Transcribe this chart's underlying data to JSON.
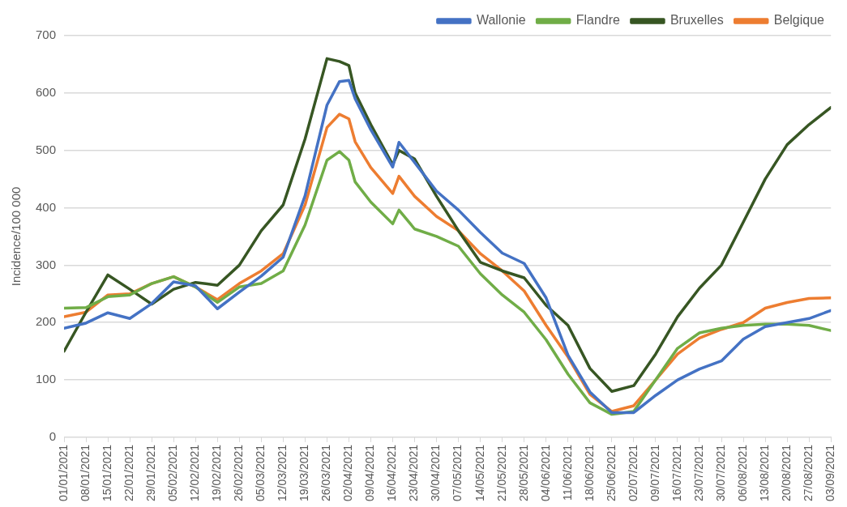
{
  "chart_data": {
    "type": "line",
    "ylabel": "Incidence/100 000",
    "legend": "top right",
    "grid": "y",
    "marker": "none",
    "line_style": "solid",
    "x": [
      "2021-01-01",
      "2021-01-08",
      "2021-01-15",
      "2021-01-22",
      "2021-01-29",
      "2021-02-05",
      "2021-02-12",
      "2021-02-19",
      "2021-02-26",
      "2021-03-05",
      "2021-03-12",
      "2021-03-19",
      "2021-03-26",
      "2021-03-30",
      "2021-04-02",
      "2021-04-04",
      "2021-04-09",
      "2021-04-16",
      "2021-04-18",
      "2021-04-23",
      "2021-04-30",
      "2021-05-07",
      "2021-05-14",
      "2021-05-21",
      "2021-05-28",
      "2021-06-04",
      "2021-06-11",
      "2021-06-18",
      "2021-06-25",
      "2021-07-02",
      "2021-07-09",
      "2021-07-16",
      "2021-07-23",
      "2021-07-30",
      "2021-08-06",
      "2021-08-13",
      "2021-08-20",
      "2021-08-27",
      "2021-09-03"
    ],
    "series": [
      {
        "name": "Wallonie",
        "color": "#4472c4",
        "values": [
          190,
          199,
          217,
          207,
          233,
          271,
          264,
          224,
          253,
          281,
          314,
          421,
          579,
          620,
          622,
          590,
          536,
          471,
          514,
          479,
          429,
          396,
          357,
          321,
          303,
          243,
          143,
          79,
          43,
          43,
          73,
          100,
          119,
          133,
          171,
          193,
          200,
          207,
          221
        ]
      },
      {
        "name": "Flandre",
        "color": "#70ad47",
        "values": [
          225,
          226,
          245,
          248,
          268,
          280,
          262,
          235,
          262,
          268,
          290,
          370,
          483,
          498,
          483,
          445,
          410,
          372,
          396,
          363,
          350,
          333,
          285,
          248,
          218,
          170,
          110,
          60,
          40,
          45,
          100,
          155,
          182,
          190,
          195,
          197,
          197,
          195,
          186
        ]
      },
      {
        "name": "Bruxelles",
        "color": "#375623",
        "values": [
          150,
          218,
          283,
          258,
          232,
          258,
          270,
          265,
          300,
          360,
          405,
          520,
          660,
          655,
          648,
          600,
          545,
          475,
          500,
          485,
          420,
          360,
          305,
          290,
          278,
          230,
          195,
          120,
          80,
          90,
          145,
          210,
          260,
          300,
          375,
          450,
          510,
          545,
          575
        ]
      },
      {
        "name": "Belgique",
        "color": "#ed7d31",
        "values": [
          210,
          218,
          248,
          250,
          268,
          280,
          262,
          240,
          268,
          290,
          320,
          405,
          540,
          563,
          555,
          515,
          470,
          425,
          455,
          420,
          385,
          360,
          320,
          290,
          255,
          195,
          140,
          75,
          45,
          55,
          100,
          145,
          173,
          188,
          200,
          225,
          235,
          242,
          243
        ]
      }
    ],
    "xlim": [
      "2021-01-01",
      "2021-09-03"
    ],
    "xticks": [
      {
        "value": "2021-01-01",
        "label": "01/01/2021"
      },
      {
        "value": "2021-01-08",
        "label": "08/01/2021"
      },
      {
        "value": "2021-01-15",
        "label": "15/01/2021"
      },
      {
        "value": "2021-01-22",
        "label": "22/01/2021"
      },
      {
        "value": "2021-01-29",
        "label": "29/01/2021"
      },
      {
        "value": "2021-02-05",
        "label": "05/02/2021"
      },
      {
        "value": "2021-02-12",
        "label": "12/02/2021"
      },
      {
        "value": "2021-02-19",
        "label": "19/02/2021"
      },
      {
        "value": "2021-02-26",
        "label": "26/02/2021"
      },
      {
        "value": "2021-03-05",
        "label": "05/03/2021"
      },
      {
        "value": "2021-03-12",
        "label": "12/03/2021"
      },
      {
        "value": "2021-03-19",
        "label": "19/03/2021"
      },
      {
        "value": "2021-03-26",
        "label": "26/03/2021"
      },
      {
        "value": "2021-04-02",
        "label": "02/04/2021"
      },
      {
        "value": "2021-04-09",
        "label": "09/04/2021"
      },
      {
        "value": "2021-04-16",
        "label": "16/04/2021"
      },
      {
        "value": "2021-04-23",
        "label": "23/04/2021"
      },
      {
        "value": "2021-04-30",
        "label": "30/04/2021"
      },
      {
        "value": "2021-05-07",
        "label": "07/05/2021"
      },
      {
        "value": "2021-05-14",
        "label": "14/05/2021"
      },
      {
        "value": "2021-05-21",
        "label": "21/05/2021"
      },
      {
        "value": "2021-05-28",
        "label": "28/05/2021"
      },
      {
        "value": "2021-06-04",
        "label": "04/06/2021"
      },
      {
        "value": "2021-06-11",
        "label": "11/06/2021"
      },
      {
        "value": "2021-06-18",
        "label": "18/06/2021"
      },
      {
        "value": "2021-06-25",
        "label": "25/06/2021"
      },
      {
        "value": "2021-07-02",
        "label": "02/07/2021"
      },
      {
        "value": "2021-07-09",
        "label": "09/07/2021"
      },
      {
        "value": "2021-07-16",
        "label": "16/07/2021"
      },
      {
        "value": "2021-07-23",
        "label": "23/07/2021"
      },
      {
        "value": "2021-07-30",
        "label": "30/07/2021"
      },
      {
        "value": "2021-08-06",
        "label": "06/08/2021"
      },
      {
        "value": "2021-08-13",
        "label": "13/08/2021"
      },
      {
        "value": "2021-08-20",
        "label": "20/08/2021"
      },
      {
        "value": "2021-08-27",
        "label": "27/08/2021"
      },
      {
        "value": "2021-09-03",
        "label": "03/09/2021"
      }
    ],
    "ylim": [
      0,
      700
    ],
    "yticks": [
      0,
      100,
      200,
      300,
      400,
      500,
      600,
      700
    ]
  }
}
